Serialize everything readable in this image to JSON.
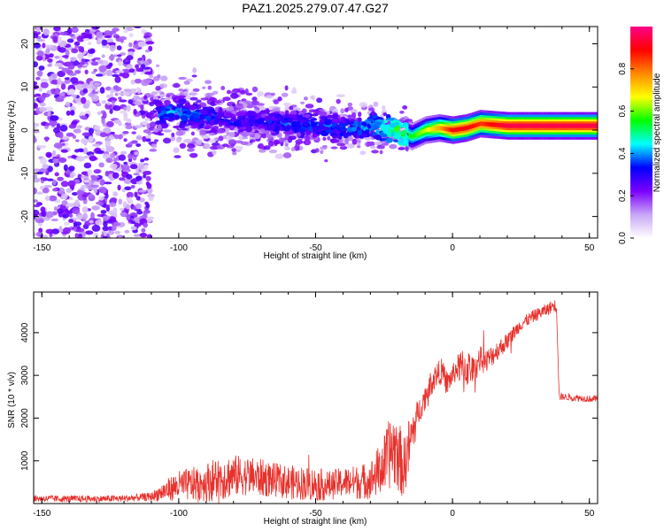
{
  "figure_title": "PAZ1.2025.279.07.47.G27",
  "colors": {
    "line": "#e8312c",
    "axes": "#000000",
    "background": "#ffffff"
  },
  "chart_data": [
    {
      "type": "heatmap",
      "name": "spectrogram",
      "xlabel": "Height of straight line (km)",
      "ylabel": "Frequency (Hz)",
      "xlim": [
        -153,
        53
      ],
      "ylim": [
        -25,
        24
      ],
      "xticks": [
        -150,
        -100,
        -50,
        0,
        50
      ],
      "xtick_labels": [
        "-150",
        "-100",
        "-50",
        "0",
        "50"
      ],
      "yticks": [
        20,
        10,
        0,
        -10,
        -20
      ],
      "ytick_labels": [
        "20",
        "10",
        "0",
        "-10",
        "-20"
      ],
      "grid": false,
      "description_points": {
        "ridge_x": [
          -108,
          -100,
          -90,
          -80,
          -70,
          -60,
          -50,
          -40,
          -30,
          -20,
          -15,
          -10,
          -5,
          0,
          5,
          10,
          20,
          30,
          40,
          53
        ],
        "ridge_y": [
          4,
          4,
          3,
          2,
          2,
          1.5,
          1,
          0.5,
          1,
          0,
          -1.5,
          0,
          0.5,
          0,
          0.5,
          1.5,
          1,
          1,
          1,
          1
        ],
        "ridge_amplitude": [
          0.35,
          0.4,
          0.35,
          0.3,
          0.3,
          0.35,
          0.35,
          0.35,
          0.4,
          0.55,
          0.55,
          0.65,
          0.75,
          0.9,
          0.9,
          0.85,
          0.95,
          0.95,
          0.95,
          0.95
        ]
      },
      "colorbar": {
        "label": "Normalized spectral amplitude",
        "ticks": [
          0.0,
          0.2,
          0.4,
          0.6,
          0.8
        ],
        "tick_labels": [
          "0.0",
          "0.2",
          "0.4",
          "0.6",
          "0.8"
        ],
        "range": [
          0,
          1
        ],
        "stops": [
          "#ffffff",
          "#c8a6f5",
          "#7a00ff",
          "#0000ff",
          "#00ffff",
          "#00ff00",
          "#ffff00",
          "#ff8800",
          "#ff0000",
          "#ff0088"
        ]
      }
    },
    {
      "type": "line",
      "name": "snr",
      "xlabel": "Height of straight line (km)",
      "ylabel": "SNR (10 * v/v)",
      "xlim": [
        -153,
        53
      ],
      "ylim": [
        0,
        4950
      ],
      "xticks": [
        -150,
        -100,
        -50,
        0,
        50
      ],
      "xtick_labels": [
        "-150",
        "-100",
        "-50",
        "0",
        "50"
      ],
      "yticks": [
        1000,
        2000,
        3000,
        4000
      ],
      "ytick_labels": [
        "1000",
        "2000",
        "3000",
        "4000"
      ],
      "grid": false,
      "series": [
        {
          "name": "SNR",
          "x": [
            -153,
            -140,
            -130,
            -120,
            -110,
            -105,
            -100,
            -95,
            -90,
            -85,
            -80,
            -75,
            -70,
            -65,
            -60,
            -55,
            -50,
            -45,
            -40,
            -35,
            -30,
            -25,
            -22,
            -20,
            -18,
            -16,
            -14,
            -12,
            -10,
            -8,
            -6,
            -4,
            -2,
            0,
            2,
            4,
            6,
            8,
            10,
            12,
            15,
            20,
            25,
            30,
            35,
            37,
            38,
            39,
            40,
            45,
            50,
            53
          ],
          "mean": [
            120,
            110,
            110,
            120,
            160,
            300,
            420,
            450,
            500,
            600,
            650,
            650,
            600,
            550,
            500,
            480,
            450,
            420,
            500,
            500,
            550,
            900,
            1300,
            1200,
            800,
            1300,
            1800,
            2200,
            2500,
            2800,
            3000,
            3100,
            2800,
            3000,
            3200,
            3100,
            3200,
            3100,
            3400,
            3300,
            3500,
            3800,
            4200,
            4400,
            4550,
            4650,
            4600,
            2500,
            2500,
            2480,
            2450,
            2450
          ],
          "amplitude": [
            80,
            80,
            80,
            80,
            100,
            250,
            350,
            400,
            450,
            550,
            500,
            450,
            450,
            400,
            400,
            400,
            400,
            350,
            350,
            400,
            450,
            700,
            900,
            900,
            700,
            700,
            500,
            300,
            300,
            300,
            300,
            300,
            300,
            250,
            300,
            600,
            400,
            300,
            300,
            300,
            250,
            200,
            150,
            150,
            150,
            150,
            150,
            100,
            80,
            80,
            80,
            80
          ],
          "points_per_km": 8
        }
      ]
    }
  ]
}
